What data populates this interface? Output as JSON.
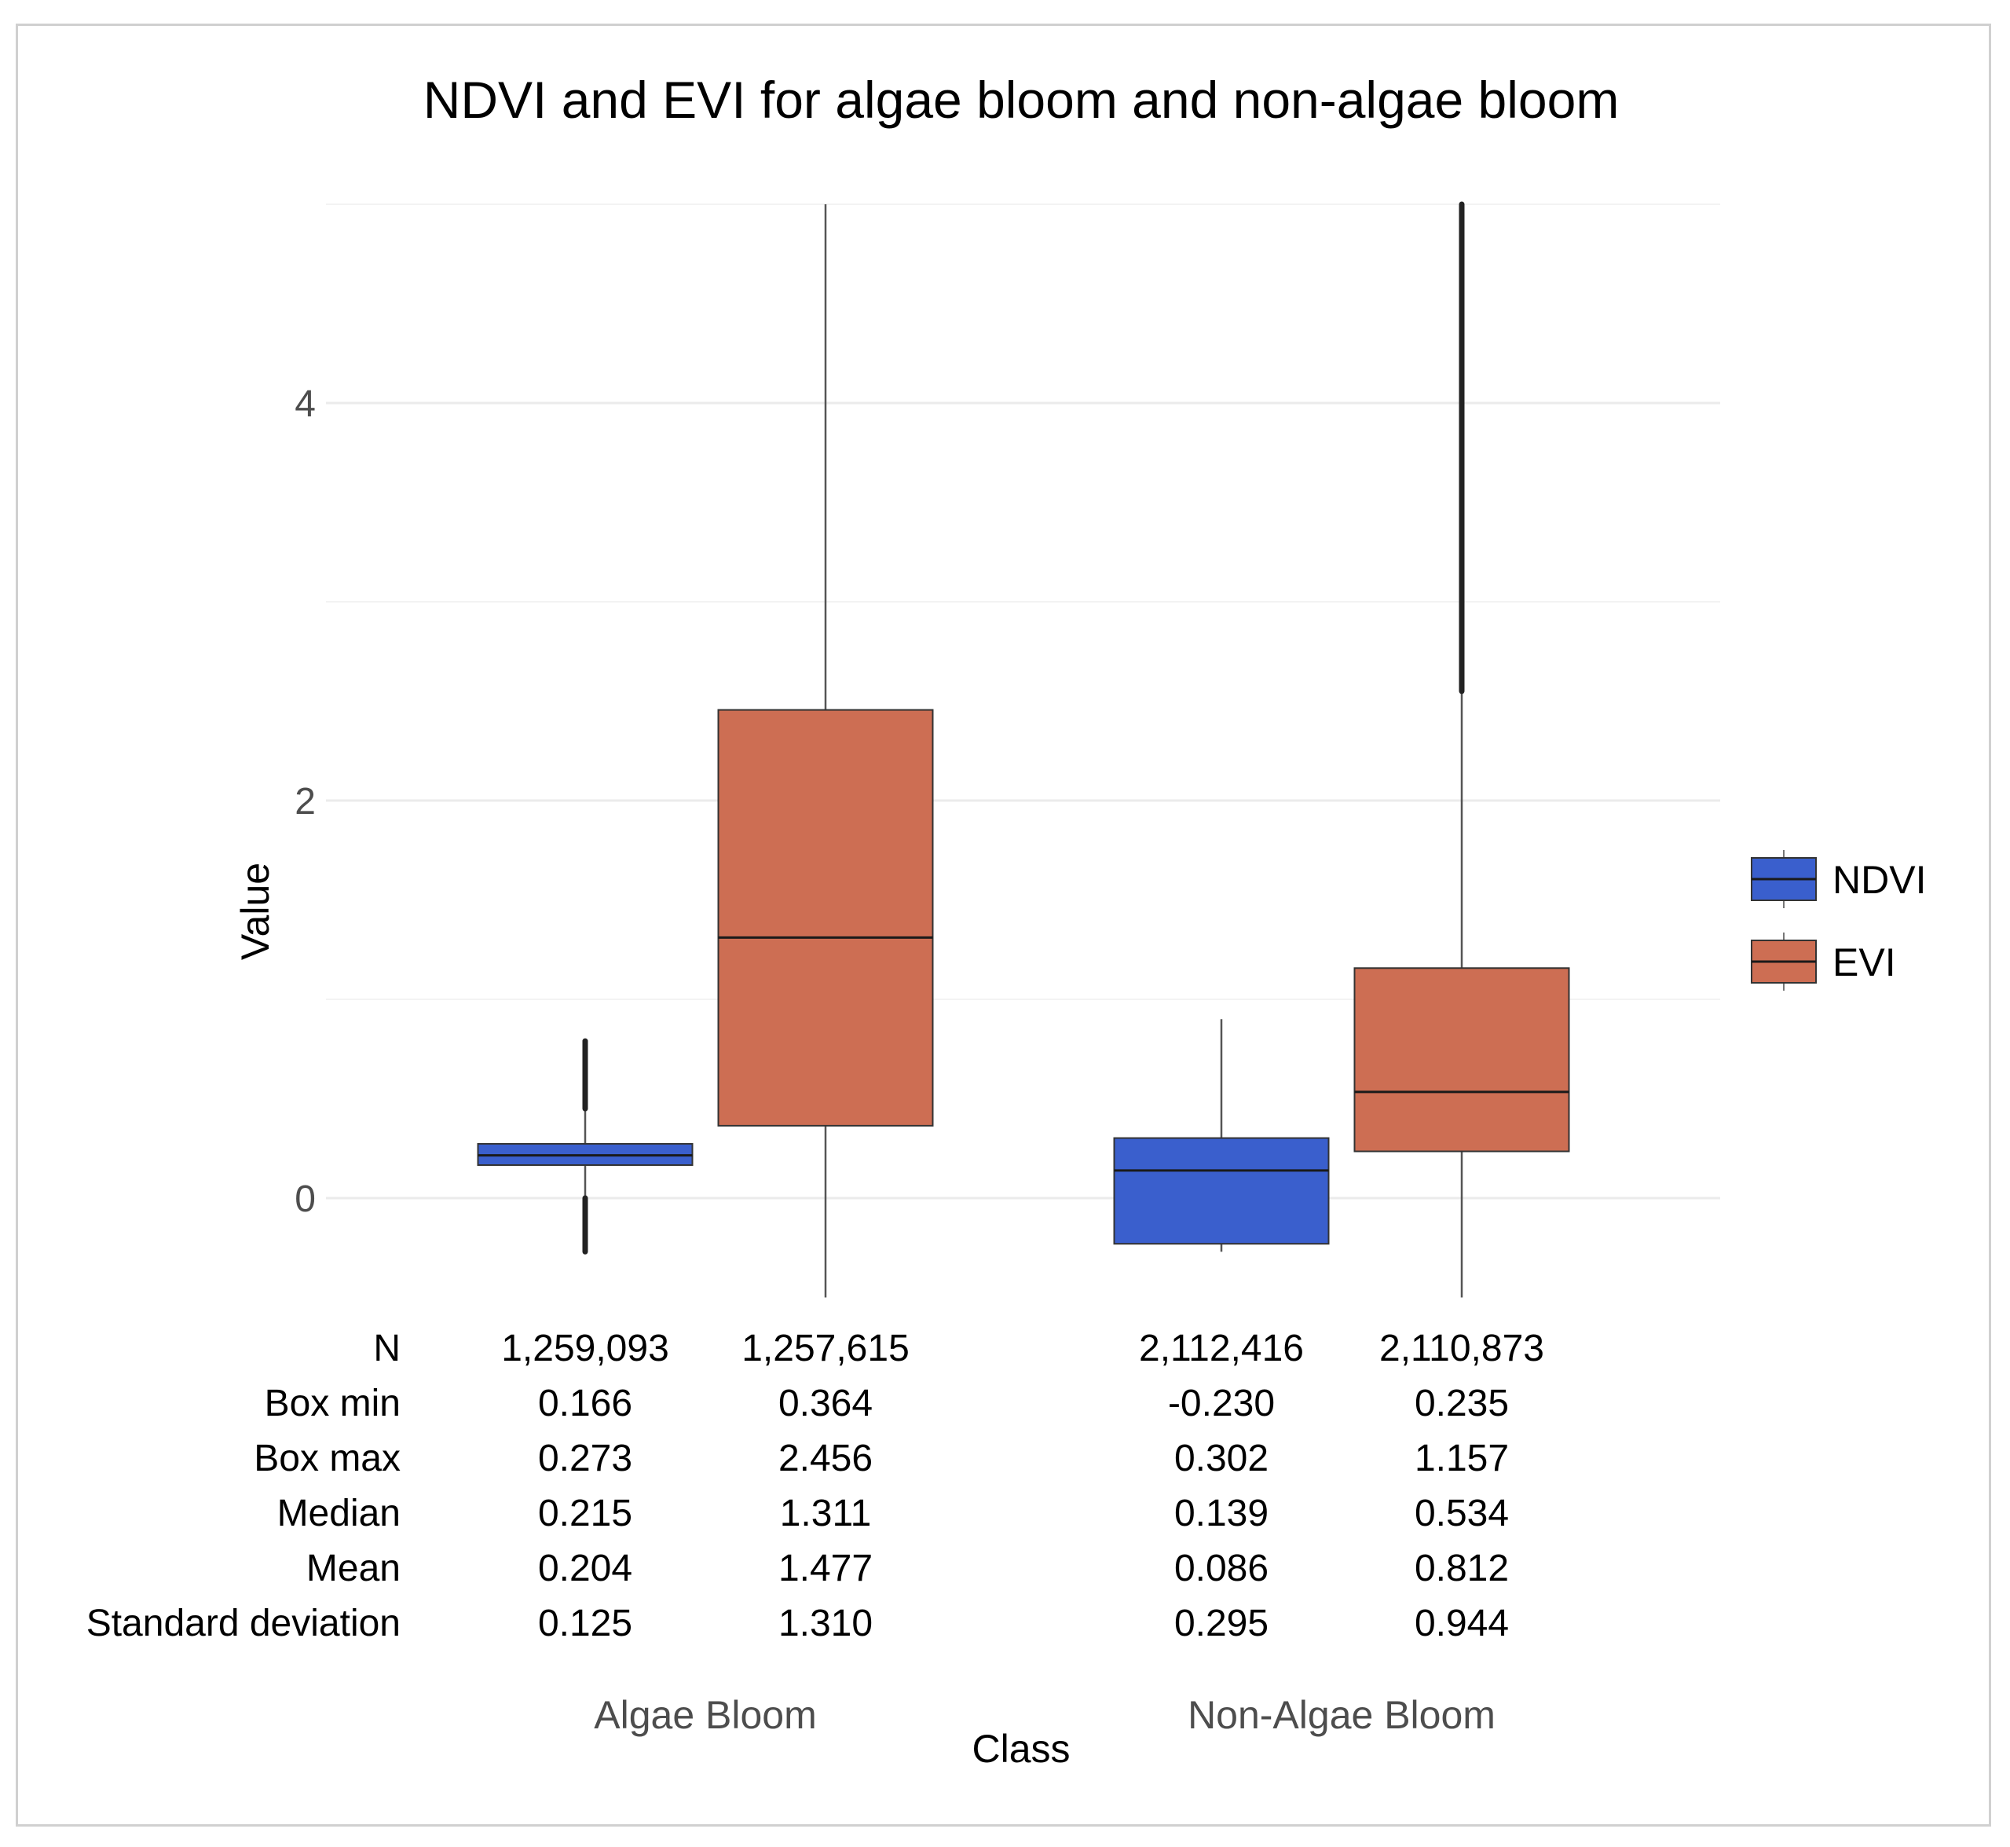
{
  "chart_data": {
    "type": "boxplot",
    "title": "NDVI and EVI for algae bloom and non-algae bloom",
    "xlabel": "Class",
    "ylabel": "Value",
    "categories": [
      "Algae Bloom",
      "Non-Algae Bloom"
    ],
    "ylim": [
      -0.5,
      5
    ],
    "yticks": [
      {
        "value": 0,
        "label": "0"
      },
      {
        "value": 2,
        "label": "2"
      },
      {
        "value": 4,
        "label": "4"
      }
    ],
    "minor_gridlines": [
      1,
      3,
      5
    ],
    "legend": {
      "position": "right",
      "entries": [
        {
          "name": "NDVI",
          "color": "#3a5fcd"
        },
        {
          "name": "EVI",
          "color": "#cd6e53"
        }
      ]
    },
    "series": [
      {
        "name": "NDVI",
        "color": "#3a5fcd",
        "boxes": [
          {
            "category": "Algae Bloom",
            "q1": 0.166,
            "median": 0.215,
            "q3": 0.273,
            "whisker_low": -0.27,
            "whisker_high": 0.79,
            "outlier_ranges": [
              [
                0.45,
                0.79
              ],
              [
                -0.27,
                0.0
              ]
            ]
          },
          {
            "category": "Non-Algae Bloom",
            "q1": -0.23,
            "median": 0.139,
            "q3": 0.302,
            "whisker_low": -0.27,
            "whisker_high": 0.9,
            "outlier_ranges": []
          }
        ]
      },
      {
        "name": "EVI",
        "color": "#cd6e53",
        "boxes": [
          {
            "category": "Algae Bloom",
            "q1": 0.364,
            "median": 1.311,
            "q3": 2.456,
            "whisker_low": -0.5,
            "whisker_high": 5.0,
            "outlier_ranges": []
          },
          {
            "category": "Non-Algae Bloom",
            "q1": 0.235,
            "median": 0.534,
            "q3": 1.157,
            "whisker_low": -0.5,
            "whisker_high": 2.55,
            "outlier_ranges": [
              [
                2.55,
                5.0
              ]
            ]
          }
        ]
      }
    ],
    "stats_table": {
      "row_labels": [
        "N",
        "Box min",
        "Box max",
        "Median",
        "Mean",
        "Standard deviation"
      ],
      "columns": [
        {
          "category": "Algae Bloom",
          "series": "NDVI",
          "values": [
            "1,259,093",
            "0.166",
            "0.273",
            "0.215",
            "0.204",
            "0.125"
          ]
        },
        {
          "category": "Algae Bloom",
          "series": "EVI",
          "values": [
            "1,257,615",
            "0.364",
            "2.456",
            "1.311",
            "1.477",
            "1.310"
          ]
        },
        {
          "category": "Non-Algae Bloom",
          "series": "NDVI",
          "values": [
            "2,112,416",
            "-0.230",
            "0.302",
            "0.139",
            "0.086",
            "0.295"
          ]
        },
        {
          "category": "Non-Algae Bloom",
          "series": "EVI",
          "values": [
            "2,110,873",
            "0.235",
            "1.157",
            "0.534",
            "0.812",
            "0.944"
          ]
        }
      ]
    }
  }
}
